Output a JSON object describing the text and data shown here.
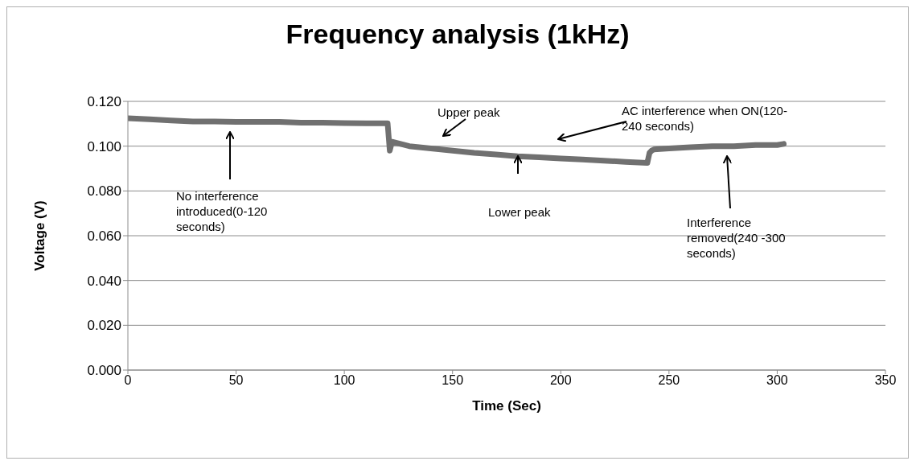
{
  "chart_data": {
    "type": "line",
    "title": "Frequency analysis (1kHz)",
    "xlabel": "Time (Sec)",
    "ylabel": "Voltage (V)",
    "series": [
      {
        "color": "#707070",
        "x": [
          0,
          10,
          20,
          30,
          40,
          50,
          60,
          70,
          80,
          90,
          100,
          110,
          120,
          121,
          122,
          130,
          140,
          150,
          160,
          170,
          180,
          190,
          200,
          210,
          220,
          230,
          240,
          241,
          242,
          243,
          250,
          260,
          270,
          280,
          290,
          300,
          303
        ],
        "values": [
          0.1125,
          0.112,
          0.1115,
          0.111,
          0.111,
          0.1108,
          0.1108,
          0.1108,
          0.1105,
          0.1105,
          0.1103,
          0.1102,
          0.1102,
          0.098,
          0.102,
          0.1,
          0.099,
          0.098,
          0.097,
          0.0963,
          0.0955,
          0.095,
          0.0945,
          0.094,
          0.0935,
          0.093,
          0.0925,
          0.097,
          0.098,
          0.0985,
          0.099,
          0.0995,
          0.1,
          0.1,
          0.1005,
          0.1005,
          0.101
        ]
      }
    ],
    "xlim": [
      0,
      350
    ],
    "xticks": [
      0,
      50,
      100,
      150,
      200,
      250,
      300,
      350
    ],
    "ylim": [
      0,
      0.12
    ],
    "yticks": [
      {
        "value": 0,
        "label": "0.000"
      },
      {
        "value": 0.02,
        "label": "0.020"
      },
      {
        "value": 0.04,
        "label": "0.040"
      },
      {
        "value": 0.06,
        "label": "0.060"
      },
      {
        "value": 0.08,
        "label": "0.080"
      },
      {
        "value": 0.1,
        "label": "0.100"
      },
      {
        "value": 0.12,
        "label": "0.120"
      }
    ],
    "grid": "y",
    "legend": false,
    "marker": "none",
    "line_style": "solid",
    "annotations": [
      "No interference introduced(0-120 seconds)",
      "Upper peak",
      "AC interference when ON(120-240 seconds)",
      "Lower peak",
      "Interference removed(240 -300 seconds)"
    ]
  }
}
